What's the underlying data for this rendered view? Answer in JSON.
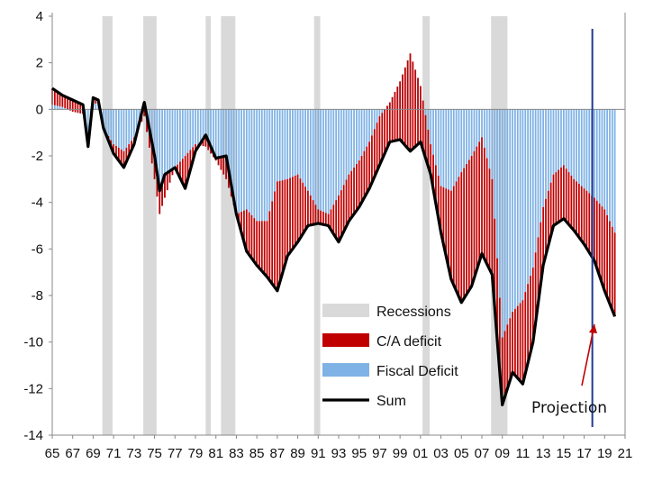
{
  "chart_data": {
    "type": "area",
    "ylim": [
      -14,
      4
    ],
    "xlim": [
      1965,
      2021
    ],
    "y_ticks": [
      "4",
      "2",
      "0",
      "-2",
      "-4",
      "-6",
      "-8",
      "-10",
      "-12",
      "-14"
    ],
    "x_ticks": [
      "65",
      "67",
      "69",
      "71",
      "73",
      "75",
      "77",
      "79",
      "81",
      "83",
      "85",
      "87",
      "89",
      "91",
      "93",
      "95",
      "97",
      "99",
      "01",
      "03",
      "05",
      "07",
      "09",
      "11",
      "13",
      "15",
      "17",
      "19",
      "21"
    ],
    "grid": false,
    "legend_position": "bottom-center",
    "legend": {
      "recessions": "Recessions",
      "ca_deficit": "C/A deficit",
      "fiscal_deficit": "Fiscal Deficit",
      "sum": "Sum"
    },
    "annotation": {
      "text": "Projection",
      "x": 2017.8
    },
    "colors": {
      "recession": "#d9d9d9",
      "ca_deficit": "#c00000",
      "fiscal_deficit": "#7fb2e5",
      "sum": "#000000",
      "projection_line": "#1f3a93",
      "arrow": "#c00000"
    },
    "recessions": [
      [
        1969.9,
        1970.9
      ],
      [
        1973.9,
        1975.2
      ],
      [
        1980.0,
        1980.5
      ],
      [
        1981.5,
        1982.9
      ],
      [
        1990.6,
        1991.2
      ],
      [
        2001.2,
        2001.9
      ],
      [
        2007.9,
        2009.5
      ]
    ],
    "series": [
      {
        "name": "Fiscal Deficit",
        "x": [
          1965,
          1966,
          1967,
          1968,
          1968.5,
          1969,
          1969.5,
          1970,
          1971,
          1972,
          1973,
          1974,
          1975,
          1975.5,
          1976,
          1977,
          1978,
          1979,
          1980,
          1981,
          1982,
          1983,
          1984,
          1985,
          1986,
          1987,
          1988,
          1989,
          1990,
          1991,
          1992,
          1993,
          1994,
          1995,
          1996,
          1997,
          1998,
          1999,
          2000,
          2001,
          2002,
          2003,
          2004,
          2005,
          2006,
          2007,
          2008,
          2009,
          2010,
          2011,
          2012,
          2013,
          2014,
          2015,
          2016,
          2017,
          2018,
          2019,
          2020
        ],
        "values": [
          0.2,
          0.1,
          -0.1,
          -0.2,
          -1.2,
          0.2,
          0.3,
          -0.8,
          -1.5,
          -1.8,
          -1.2,
          -0.3,
          -3.0,
          -4.5,
          -3.8,
          -2.5,
          -2.0,
          -1.5,
          -1.6,
          -2.2,
          -3.0,
          -4.5,
          -4.3,
          -4.8,
          -4.8,
          -3.1,
          -3.0,
          -2.8,
          -3.5,
          -4.3,
          -4.5,
          -3.7,
          -2.8,
          -2.2,
          -1.4,
          -0.3,
          0.3,
          1.2,
          2.4,
          1.0,
          -1.5,
          -3.3,
          -3.5,
          -2.7,
          -2.0,
          -1.2,
          -3.0,
          -9.8,
          -8.7,
          -8.2,
          -6.8,
          -4.2,
          -2.8,
          -2.4,
          -3.0,
          -3.4,
          -3.8,
          -4.3,
          -5.3
        ]
      },
      {
        "name": "Sum",
        "x": [
          1965,
          1966,
          1967,
          1968,
          1968.5,
          1969,
          1969.5,
          1970,
          1971,
          1972,
          1973,
          1974,
          1975,
          1975.5,
          1976,
          1977,
          1978,
          1979,
          1980,
          1981,
          1982,
          1983,
          1984,
          1985,
          1986,
          1987,
          1988,
          1989,
          1990,
          1991,
          1992,
          1993,
          1994,
          1995,
          1996,
          1997,
          1998,
          1999,
          2000,
          2001,
          2002,
          2003,
          2004,
          2005,
          2006,
          2007,
          2008,
          2009,
          2010,
          2011,
          2012,
          2013,
          2014,
          2015,
          2016,
          2017,
          2018,
          2019,
          2020
        ],
        "values": [
          0.9,
          0.6,
          0.4,
          0.2,
          -1.6,
          0.5,
          0.4,
          -0.8,
          -1.9,
          -2.5,
          -1.5,
          0.3,
          -2.0,
          -3.5,
          -2.8,
          -2.5,
          -3.4,
          -1.8,
          -1.1,
          -2.1,
          -2.0,
          -4.5,
          -6.1,
          -6.7,
          -7.2,
          -7.8,
          -6.3,
          -5.7,
          -5.0,
          -4.9,
          -5.0,
          -5.7,
          -4.8,
          -4.2,
          -3.4,
          -2.4,
          -1.4,
          -1.3,
          -1.8,
          -1.4,
          -2.8,
          -5.3,
          -7.3,
          -8.3,
          -7.6,
          -6.2,
          -7.1,
          -12.7,
          -11.3,
          -11.8,
          -10.0,
          -6.7,
          -5.0,
          -4.7,
          -5.2,
          -5.8,
          -6.5,
          -7.8,
          -8.9
        ]
      }
    ]
  }
}
